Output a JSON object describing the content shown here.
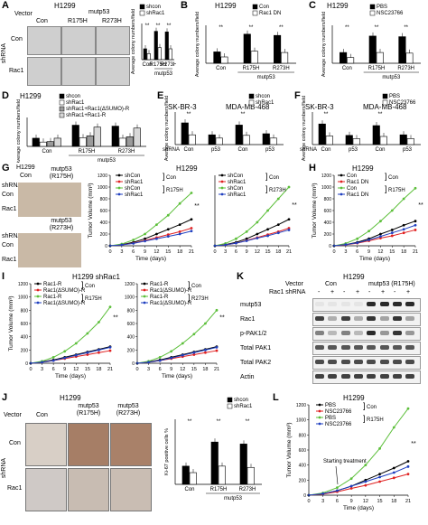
{
  "panels": {
    "A": {
      "label": "A",
      "title": "H1299",
      "col_vector": "Vector",
      "col_mutp53": "mutp53",
      "cols": [
        "Con",
        "R175H",
        "R273H"
      ],
      "row_title": "shRNA",
      "rows": [
        "Con",
        "Rac1"
      ],
      "legend": [
        "shcon",
        "shRac1"
      ],
      "ylabel": "Average colony numbers/field",
      "xgroup": "mutp53",
      "xticks": [
        "Con",
        "R175H",
        "R273H"
      ]
    },
    "B": {
      "label": "B",
      "title": "H1299",
      "legend": [
        "Con",
        "Rac1 DN"
      ],
      "ylabel": "Average colony numbers/field",
      "xticks": [
        "Con",
        "R175H",
        "R273H"
      ],
      "xgroup": "mutp53"
    },
    "C": {
      "label": "C",
      "title": "H1299",
      "legend": [
        "PBS",
        "NSC23766"
      ],
      "ylabel": "Average colony numbers/field",
      "xticks": [
        "Con",
        "R175H",
        "R273H"
      ],
      "xgroup": "mutp53"
    },
    "D": {
      "label": "D",
      "title": "H1299",
      "legend": [
        "shcon",
        "shRac1",
        "shRac1+Rac1(ΔSUMO)-R",
        "shRac1+Rac1-R"
      ],
      "ylabel": "Average colony numbers/field",
      "xticks": [
        "Con",
        "R175H",
        "R273H"
      ],
      "xgroup": "mutp53"
    },
    "E": {
      "label": "E",
      "titles": [
        "SK-BR-3",
        "MDA-MB-468"
      ],
      "legend": [
        "shcon",
        "shRac1"
      ],
      "ylabel": "Average colony numbers/field",
      "xrow": "shRNA",
      "xticks": [
        "Con",
        "p53"
      ]
    },
    "F": {
      "label": "F",
      "titles": [
        "SK-BR-3",
        "MDA-MB-468"
      ],
      "legend": [
        "PBS",
        "NSC23766"
      ],
      "ylabel": "Average colony numbers/field",
      "xrow": "shRNA",
      "xticks": [
        "Con",
        "p53"
      ]
    },
    "G": {
      "label": "G",
      "title": "H1299",
      "photo_title": "H1299",
      "photo_cols": [
        "Con",
        "mutp53 (R175H)",
        "mutp53 (R273H)"
      ],
      "shRNA": "shRNA",
      "rows": [
        "Con",
        "Rac1"
      ],
      "legend": [
        "shCon",
        "shRac1",
        "shCon",
        "shRac1"
      ],
      "legend_groups": [
        "Con",
        "R175H",
        "R273H"
      ],
      "ylabel": "Tumor Volume (mm³)",
      "xlabel": "Time (days)",
      "xticks": [
        "0",
        "3",
        "6",
        "9",
        "12",
        "15",
        "18",
        "21"
      ],
      "yticks": [
        "0",
        "200",
        "400",
        "600",
        "800",
        "1000",
        "1200"
      ],
      "sig": "**"
    },
    "H": {
      "label": "H",
      "title": "H1299",
      "legend": [
        "Con",
        "Rac1 DN",
        "Con",
        "Rac1 DN"
      ],
      "legend_groups": [
        "Con",
        "R175H"
      ],
      "ylabel": "Tumor Volume (mm³)",
      "xlabel": "Time (days)",
      "xticks": [
        "0",
        "3",
        "6",
        "9",
        "12",
        "15",
        "18",
        "21"
      ],
      "yticks": [
        "0",
        "200",
        "400",
        "600",
        "800",
        "1000",
        "1200"
      ],
      "sig": "**"
    },
    "I": {
      "label": "I",
      "title": "H1299 shRac1",
      "legend": [
        "Rac1-R",
        "Rac1(ΔSUMO)-R",
        "Rac1-R",
        "Rac1(ΔSUMO)-R"
      ],
      "legend_groups": [
        "Con",
        "R175H",
        "R273H"
      ],
      "ylabel": "Tumor Volume (mm³)",
      "xlabel": "Time (days)",
      "xticks": [
        "0",
        "3",
        "6",
        "9",
        "12",
        "15",
        "18",
        "21"
      ],
      "yticks": [
        "0",
        "200",
        "400",
        "600",
        "800",
        "1000",
        "1200"
      ],
      "sig": "**"
    },
    "J": {
      "label": "J",
      "title": "H1299",
      "col_vector": "Vector",
      "cols": [
        "Con",
        "mutp53 (R175H)",
        "mutp53 (R273H)"
      ],
      "row_title": "shRNA",
      "rows": [
        "Con",
        "Rac1"
      ],
      "legend": [
        "shcon",
        "shRac1"
      ],
      "ylabel": "Ki-67 positive cells %",
      "xticks": [
        "Con",
        "R175H",
        "R273H"
      ],
      "xgroup": "mutp53"
    },
    "K": {
      "label": "K",
      "title": "H1299",
      "vector": "Vector",
      "groups": [
        "Con",
        "mutp53 (R175H)"
      ],
      "shrna_label": "Rac1 shRNA",
      "shrna_marks": [
        "-",
        "+",
        "-",
        "+",
        "-",
        "+",
        "-",
        "+"
      ],
      "blots": [
        "mutp53",
        "Rac1",
        "p-PAK1/2",
        "Total PAK1",
        "Total PAK2",
        "Actin"
      ]
    },
    "L": {
      "label": "L",
      "title": "H1299",
      "legend": [
        "PBS",
        "NSC23766",
        "PBS",
        "NSC23766"
      ],
      "legend_groups": [
        "Con",
        "R175H"
      ],
      "annotation": "Starting treatment",
      "ylabel": "Tumor Volume (mm³)",
      "xlabel": "Time (days)",
      "xticks": [
        "0",
        "3",
        "6",
        "9",
        "12",
        "15",
        "18",
        "21"
      ],
      "yticks": [
        "0",
        "200",
        "400",
        "600",
        "800",
        "1000",
        "1200"
      ],
      "sig": "**"
    }
  },
  "chart_data": [
    {
      "id": "A",
      "type": "bar",
      "categories": [
        "Con",
        "R175H",
        "R273H"
      ],
      "series": [
        {
          "name": "shcon",
          "values": [
            18,
            47,
            46
          ]
        },
        {
          "name": "shRac1",
          "values": [
            10,
            20,
            18
          ]
        }
      ],
      "ylim": [
        0,
        60
      ]
    },
    {
      "id": "B",
      "type": "bar",
      "categories": [
        "Con",
        "R175H",
        "R273H"
      ],
      "series": [
        {
          "name": "Con",
          "values": [
            18,
            46,
            44
          ]
        },
        {
          "name": "Rac1 DN",
          "values": [
            10,
            19,
            17
          ]
        }
      ],
      "ylim": [
        0,
        60
      ]
    },
    {
      "id": "C",
      "type": "bar",
      "categories": [
        "Con",
        "R175H",
        "R273H"
      ],
      "series": [
        {
          "name": "PBS",
          "values": [
            17,
            43,
            42
          ]
        },
        {
          "name": "NSC23766",
          "values": [
            9,
            17,
            16
          ]
        }
      ],
      "ylim": [
        0,
        60
      ]
    },
    {
      "id": "D",
      "type": "bar",
      "categories": [
        "Con",
        "R175H",
        "R273H"
      ],
      "series": [
        {
          "name": "shcon",
          "values": [
            17,
            44,
            42
          ]
        },
        {
          "name": "shRac1",
          "values": [
            9,
            18,
            17
          ]
        },
        {
          "name": "shRac1+Rac1(ΔSUMO)-R",
          "values": [
            10,
            22,
            20
          ]
        },
        {
          "name": "shRac1+Rac1-R",
          "values": [
            17,
            40,
            38
          ]
        }
      ],
      "ylim": [
        0,
        60
      ]
    },
    {
      "id": "E",
      "type": "bar",
      "categories": [
        "Con",
        "p53",
        "Con",
        "p53"
      ],
      "series": [
        {
          "name": "shcon",
          "values": [
            40,
            18,
            36,
            20
          ]
        },
        {
          "name": "shRac1",
          "values": [
            18,
            12,
            17,
            12
          ]
        }
      ],
      "ylim": [
        0,
        60
      ]
    },
    {
      "id": "F",
      "type": "bar",
      "categories": [
        "Con",
        "p53",
        "Con",
        "p53"
      ],
      "series": [
        {
          "name": "PBS",
          "values": [
            38,
            17,
            35,
            18
          ]
        },
        {
          "name": "NSC23766",
          "values": [
            16,
            11,
            15,
            11
          ]
        }
      ],
      "ylim": [
        0,
        60
      ]
    },
    {
      "id": "G1",
      "type": "line",
      "x": [
        0,
        3,
        6,
        9,
        12,
        15,
        18,
        21
      ],
      "series": [
        {
          "name": "shCon Con",
          "values": [
            0,
            20,
            60,
            120,
            200,
            280,
            360,
            450
          ]
        },
        {
          "name": "shRac1 Con",
          "values": [
            0,
            15,
            45,
            90,
            140,
            190,
            240,
            300
          ]
        },
        {
          "name": "shCon R175H",
          "values": [
            0,
            30,
            100,
            200,
            360,
            520,
            720,
            900
          ]
        },
        {
          "name": "shRac1 R175H",
          "values": [
            0,
            15,
            40,
            80,
            120,
            160,
            200,
            250
          ]
        }
      ],
      "ylim": [
        0,
        1200
      ]
    },
    {
      "id": "G2",
      "type": "line",
      "x": [
        0,
        3,
        6,
        9,
        12,
        15,
        18,
        21
      ],
      "series": [
        {
          "name": "shCon Con",
          "values": [
            0,
            20,
            60,
            120,
            200,
            280,
            360,
            450
          ]
        },
        {
          "name": "shRac1 Con",
          "values": [
            0,
            15,
            45,
            90,
            140,
            190,
            240,
            300
          ]
        },
        {
          "name": "shCon R273H",
          "values": [
            0,
            40,
            120,
            240,
            400,
            600,
            800,
            1000
          ]
        },
        {
          "name": "shRac1 R273H",
          "values": [
            0,
            15,
            45,
            85,
            130,
            170,
            220,
            270
          ]
        }
      ],
      "ylim": [
        0,
        1200
      ]
    },
    {
      "id": "H",
      "type": "line",
      "x": [
        0,
        3,
        6,
        9,
        12,
        15,
        18,
        21
      ],
      "series": [
        {
          "name": "Con Con",
          "values": [
            0,
            20,
            60,
            120,
            200,
            270,
            350,
            420
          ]
        },
        {
          "name": "Rac1 DN Con",
          "values": [
            0,
            15,
            45,
            85,
            130,
            170,
            220,
            270
          ]
        },
        {
          "name": "Con R175H",
          "values": [
            0,
            40,
            120,
            250,
            420,
            600,
            800,
            980
          ]
        },
        {
          "name": "Rac1 DN R175H",
          "values": [
            0,
            20,
            50,
            100,
            160,
            220,
            280,
            350
          ]
        }
      ],
      "ylim": [
        0,
        1200
      ]
    },
    {
      "id": "I1",
      "type": "line",
      "x": [
        0,
        3,
        6,
        9,
        12,
        15,
        18,
        21
      ],
      "series": [
        {
          "name": "Rac1-R Con",
          "values": [
            0,
            20,
            50,
            90,
            130,
            170,
            210,
            250
          ]
        },
        {
          "name": "Rac1(ΔSUMO)-R Con",
          "values": [
            0,
            15,
            40,
            70,
            100,
            130,
            160,
            190
          ]
        },
        {
          "name": "Rac1-R R175H",
          "values": [
            0,
            30,
            90,
            180,
            300,
            450,
            620,
            850
          ]
        },
        {
          "name": "Rac1(ΔSUMO)-R R175H",
          "values": [
            0,
            15,
            40,
            80,
            120,
            160,
            200,
            240
          ]
        }
      ],
      "ylim": [
        0,
        1200
      ]
    },
    {
      "id": "I2",
      "type": "line",
      "x": [
        0,
        3,
        6,
        9,
        12,
        15,
        18,
        21
      ],
      "series": [
        {
          "name": "Rac1-R Con",
          "values": [
            0,
            20,
            50,
            90,
            130,
            170,
            210,
            250
          ]
        },
        {
          "name": "Rac1(ΔSUMO)-R Con",
          "values": [
            0,
            15,
            40,
            70,
            100,
            130,
            160,
            190
          ]
        },
        {
          "name": "Rac1-R R273H",
          "values": [
            0,
            30,
            90,
            180,
            300,
            440,
            600,
            800
          ]
        },
        {
          "name": "Rac1(ΔSUMO)-R R273H",
          "values": [
            0,
            15,
            40,
            80,
            120,
            160,
            200,
            240
          ]
        }
      ],
      "ylim": [
        0,
        1200
      ]
    },
    {
      "id": "J",
      "type": "bar",
      "categories": [
        "Con",
        "R175H",
        "R273H"
      ],
      "series": [
        {
          "name": "shcon",
          "values": [
            28,
            65,
            62
          ]
        },
        {
          "name": "shRac1",
          "values": [
            18,
            28,
            26
          ]
        }
      ],
      "ylim": [
        0,
        100
      ]
    },
    {
      "id": "L",
      "type": "line",
      "x": [
        0,
        3,
        6,
        9,
        12,
        15,
        18,
        21
      ],
      "series": [
        {
          "name": "PBS Con",
          "values": [
            0,
            20,
            60,
            120,
            200,
            280,
            360,
            450
          ]
        },
        {
          "name": "NSC23766 Con",
          "values": [
            0,
            15,
            45,
            90,
            130,
            180,
            230,
            280
          ]
        },
        {
          "name": "PBS R175H",
          "values": [
            0,
            30,
            100,
            220,
            400,
            620,
            900,
            1150
          ]
        },
        {
          "name": "NSC23766 R175H",
          "values": [
            0,
            20,
            60,
            120,
            180,
            240,
            300,
            380
          ]
        }
      ],
      "ylim": [
        0,
        1200
      ]
    }
  ],
  "colors": {
    "black": "#000000",
    "red": "#e02020",
    "green": "#5cbf3a",
    "blue": "#2040c0",
    "white": "#ffffff",
    "gray": "#9a9a9a"
  }
}
